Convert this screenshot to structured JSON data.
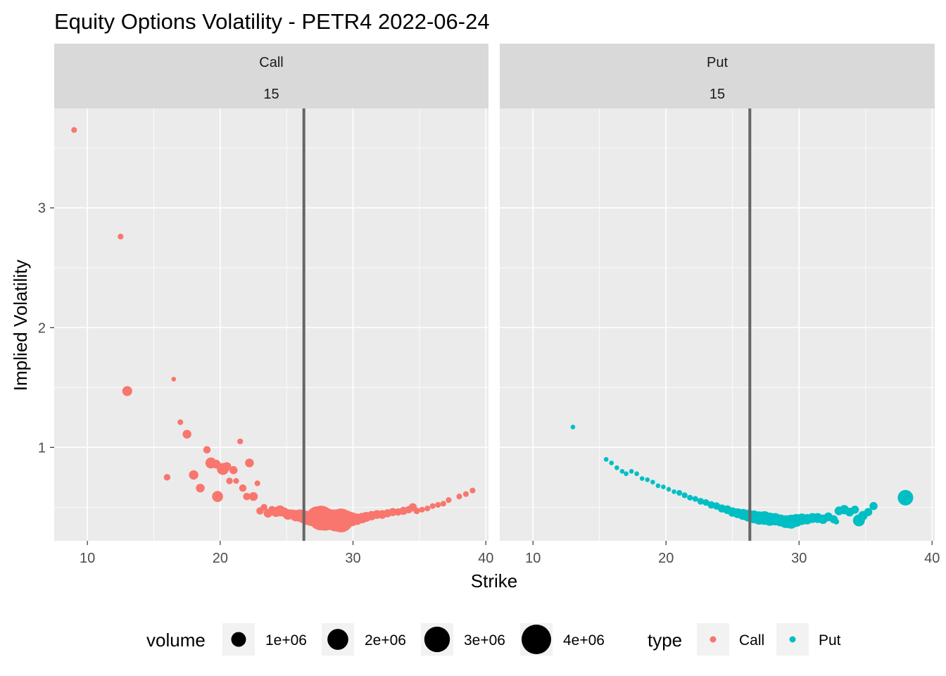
{
  "colors": {
    "call": "#F8766D",
    "put": "#00BFC4",
    "panel": "#EBEBEB",
    "strip": "#D9D9D9",
    "grid": "#FFFFFF",
    "spot_line": "#666666"
  },
  "chart_data": {
    "type": "scatter",
    "title": "Equity Options Volatility - PETR4 2022-06-24",
    "xlabel": "Strike",
    "ylabel": "Implied Volatility",
    "xlim": [
      7.5,
      40.2
    ],
    "ylim": [
      0.22,
      3.83
    ],
    "x_ticks": [
      10,
      20,
      30,
      40
    ],
    "x_tick_labels": [
      "10",
      "20",
      "30",
      "40"
    ],
    "y_ticks": [
      1,
      2,
      3
    ],
    "y_tick_labels": [
      "1",
      "2",
      "3"
    ],
    "grid": true,
    "spot_price": 26.3,
    "facets": [
      {
        "label": "Call",
        "sublabel": "15",
        "type": "Call"
      },
      {
        "label": "Put",
        "sublabel": "15",
        "type": "Put"
      }
    ],
    "series": [
      {
        "name": "Call",
        "points": [
          {
            "x": 9.0,
            "y": 3.65,
            "volume": 150000
          },
          {
            "x": 12.5,
            "y": 2.76,
            "volume": 150000
          },
          {
            "x": 13.0,
            "y": 1.47,
            "volume": 450000
          },
          {
            "x": 16.0,
            "y": 0.75,
            "volume": 200000
          },
          {
            "x": 16.5,
            "y": 1.57,
            "volume": 100000
          },
          {
            "x": 17.0,
            "y": 1.21,
            "volume": 150000
          },
          {
            "x": 17.5,
            "y": 1.11,
            "volume": 350000
          },
          {
            "x": 18.0,
            "y": 0.77,
            "volume": 400000
          },
          {
            "x": 18.5,
            "y": 0.66,
            "volume": 350000
          },
          {
            "x": 19.0,
            "y": 0.98,
            "volume": 250000
          },
          {
            "x": 19.3,
            "y": 0.87,
            "volume": 550000
          },
          {
            "x": 19.7,
            "y": 0.86,
            "volume": 350000
          },
          {
            "x": 19.8,
            "y": 0.59,
            "volume": 550000
          },
          {
            "x": 20.2,
            "y": 0.82,
            "volume": 650000
          },
          {
            "x": 20.5,
            "y": 0.84,
            "volume": 350000
          },
          {
            "x": 20.7,
            "y": 0.72,
            "volume": 200000
          },
          {
            "x": 21.0,
            "y": 0.81,
            "volume": 300000
          },
          {
            "x": 21.2,
            "y": 0.72,
            "volume": 150000
          },
          {
            "x": 21.5,
            "y": 1.05,
            "volume": 150000
          },
          {
            "x": 21.7,
            "y": 0.66,
            "volume": 250000
          },
          {
            "x": 22.0,
            "y": 0.59,
            "volume": 250000
          },
          {
            "x": 22.2,
            "y": 0.87,
            "volume": 350000
          },
          {
            "x": 22.5,
            "y": 0.59,
            "volume": 350000
          },
          {
            "x": 22.8,
            "y": 0.7,
            "volume": 150000
          },
          {
            "x": 23.0,
            "y": 0.47,
            "volume": 250000
          },
          {
            "x": 23.3,
            "y": 0.5,
            "volume": 200000
          },
          {
            "x": 23.6,
            "y": 0.45,
            "volume": 350000
          },
          {
            "x": 23.9,
            "y": 0.48,
            "volume": 250000
          },
          {
            "x": 24.2,
            "y": 0.46,
            "volume": 450000
          },
          {
            "x": 24.5,
            "y": 0.47,
            "volume": 550000
          },
          {
            "x": 24.8,
            "y": 0.46,
            "volume": 400000
          },
          {
            "x": 25.1,
            "y": 0.44,
            "volume": 500000
          },
          {
            "x": 25.4,
            "y": 0.44,
            "volume": 450000
          },
          {
            "x": 25.7,
            "y": 0.43,
            "volume": 600000
          },
          {
            "x": 26.0,
            "y": 0.43,
            "volume": 700000
          },
          {
            "x": 26.3,
            "y": 0.42,
            "volume": 800000
          },
          {
            "x": 26.6,
            "y": 0.41,
            "volume": 900000
          },
          {
            "x": 26.9,
            "y": 0.41,
            "volume": 1200000
          },
          {
            "x": 27.3,
            "y": 0.42,
            "volume": 2000000
          },
          {
            "x": 27.6,
            "y": 0.41,
            "volume": 2800000
          },
          {
            "x": 27.9,
            "y": 0.4,
            "volume": 2400000
          },
          {
            "x": 28.3,
            "y": 0.4,
            "volume": 1800000
          },
          {
            "x": 28.7,
            "y": 0.39,
            "volume": 2200000
          },
          {
            "x": 29.1,
            "y": 0.39,
            "volume": 2600000
          },
          {
            "x": 29.5,
            "y": 0.4,
            "volume": 1400000
          },
          {
            "x": 29.9,
            "y": 0.4,
            "volume": 900000
          },
          {
            "x": 30.3,
            "y": 0.4,
            "volume": 600000
          },
          {
            "x": 30.7,
            "y": 0.41,
            "volume": 500000
          },
          {
            "x": 31.0,
            "y": 0.42,
            "volume": 450000
          },
          {
            "x": 31.4,
            "y": 0.43,
            "volume": 400000
          },
          {
            "x": 31.8,
            "y": 0.44,
            "volume": 350000
          },
          {
            "x": 32.2,
            "y": 0.44,
            "volume": 350000
          },
          {
            "x": 32.6,
            "y": 0.45,
            "volume": 300000
          },
          {
            "x": 33.0,
            "y": 0.46,
            "volume": 300000
          },
          {
            "x": 33.4,
            "y": 0.46,
            "volume": 250000
          },
          {
            "x": 33.8,
            "y": 0.47,
            "volume": 300000
          },
          {
            "x": 34.2,
            "y": 0.48,
            "volume": 250000
          },
          {
            "x": 34.5,
            "y": 0.5,
            "volume": 300000
          },
          {
            "x": 34.8,
            "y": 0.47,
            "volume": 200000
          },
          {
            "x": 35.2,
            "y": 0.48,
            "volume": 150000
          },
          {
            "x": 35.6,
            "y": 0.49,
            "volume": 150000
          },
          {
            "x": 36.0,
            "y": 0.51,
            "volume": 150000
          },
          {
            "x": 36.4,
            "y": 0.52,
            "volume": 150000
          },
          {
            "x": 36.8,
            "y": 0.53,
            "volume": 150000
          },
          {
            "x": 37.2,
            "y": 0.56,
            "volume": 150000
          },
          {
            "x": 38.0,
            "y": 0.59,
            "volume": 150000
          },
          {
            "x": 38.5,
            "y": 0.61,
            "volume": 150000
          },
          {
            "x": 39.0,
            "y": 0.64,
            "volume": 150000
          }
        ]
      },
      {
        "name": "Put",
        "points": [
          {
            "x": 13.0,
            "y": 1.17,
            "volume": 100000
          },
          {
            "x": 15.5,
            "y": 0.9,
            "volume": 100000
          },
          {
            "x": 15.9,
            "y": 0.87,
            "volume": 100000
          },
          {
            "x": 16.3,
            "y": 0.83,
            "volume": 100000
          },
          {
            "x": 16.7,
            "y": 0.8,
            "volume": 100000
          },
          {
            "x": 17.0,
            "y": 0.78,
            "volume": 100000
          },
          {
            "x": 17.4,
            "y": 0.8,
            "volume": 100000
          },
          {
            "x": 17.8,
            "y": 0.78,
            "volume": 100000
          },
          {
            "x": 18.2,
            "y": 0.74,
            "volume": 100000
          },
          {
            "x": 18.6,
            "y": 0.73,
            "volume": 100000
          },
          {
            "x": 19.0,
            "y": 0.71,
            "volume": 100000
          },
          {
            "x": 19.4,
            "y": 0.68,
            "volume": 100000
          },
          {
            "x": 19.8,
            "y": 0.67,
            "volume": 100000
          },
          {
            "x": 20.2,
            "y": 0.65,
            "volume": 100000
          },
          {
            "x": 20.6,
            "y": 0.63,
            "volume": 100000
          },
          {
            "x": 21.0,
            "y": 0.62,
            "volume": 150000
          },
          {
            "x": 21.4,
            "y": 0.6,
            "volume": 150000
          },
          {
            "x": 21.8,
            "y": 0.58,
            "volume": 150000
          },
          {
            "x": 22.2,
            "y": 0.57,
            "volume": 150000
          },
          {
            "x": 22.6,
            "y": 0.55,
            "volume": 200000
          },
          {
            "x": 23.0,
            "y": 0.54,
            "volume": 200000
          },
          {
            "x": 23.4,
            "y": 0.52,
            "volume": 250000
          },
          {
            "x": 23.8,
            "y": 0.51,
            "volume": 250000
          },
          {
            "x": 24.2,
            "y": 0.49,
            "volume": 300000
          },
          {
            "x": 24.6,
            "y": 0.48,
            "volume": 350000
          },
          {
            "x": 25.0,
            "y": 0.46,
            "volume": 400000
          },
          {
            "x": 25.4,
            "y": 0.45,
            "volume": 450000
          },
          {
            "x": 25.8,
            "y": 0.44,
            "volume": 550000
          },
          {
            "x": 26.2,
            "y": 0.43,
            "volume": 650000
          },
          {
            "x": 26.6,
            "y": 0.42,
            "volume": 750000
          },
          {
            "x": 27.0,
            "y": 0.41,
            "volume": 800000
          },
          {
            "x": 27.4,
            "y": 0.41,
            "volume": 850000
          },
          {
            "x": 27.8,
            "y": 0.4,
            "volume": 800000
          },
          {
            "x": 28.2,
            "y": 0.4,
            "volume": 700000
          },
          {
            "x": 28.6,
            "y": 0.39,
            "volume": 650000
          },
          {
            "x": 29.0,
            "y": 0.38,
            "volume": 750000
          },
          {
            "x": 29.4,
            "y": 0.38,
            "volume": 900000
          },
          {
            "x": 29.8,
            "y": 0.39,
            "volume": 750000
          },
          {
            "x": 30.2,
            "y": 0.4,
            "volume": 600000
          },
          {
            "x": 30.6,
            "y": 0.4,
            "volume": 500000
          },
          {
            "x": 31.0,
            "y": 0.41,
            "volume": 450000
          },
          {
            "x": 31.4,
            "y": 0.41,
            "volume": 450000
          },
          {
            "x": 31.8,
            "y": 0.4,
            "volume": 400000
          },
          {
            "x": 32.2,
            "y": 0.42,
            "volume": 350000
          },
          {
            "x": 32.6,
            "y": 0.4,
            "volume": 300000
          },
          {
            "x": 33.0,
            "y": 0.47,
            "volume": 350000
          },
          {
            "x": 33.4,
            "y": 0.48,
            "volume": 400000
          },
          {
            "x": 33.8,
            "y": 0.46,
            "volume": 350000
          },
          {
            "x": 32.8,
            "y": 0.38,
            "volume": 150000
          },
          {
            "x": 34.2,
            "y": 0.48,
            "volume": 300000
          },
          {
            "x": 34.5,
            "y": 0.39,
            "volume": 650000
          },
          {
            "x": 34.8,
            "y": 0.43,
            "volume": 400000
          },
          {
            "x": 35.2,
            "y": 0.46,
            "volume": 300000
          },
          {
            "x": 35.6,
            "y": 0.51,
            "volume": 300000
          },
          {
            "x": 38.0,
            "y": 0.58,
            "volume": 1100000
          }
        ]
      }
    ],
    "legend": {
      "position": "bottom",
      "size_title": "volume",
      "size_entries": [
        {
          "label": "1e+06",
          "value": 1000000
        },
        {
          "label": "2e+06",
          "value": 2000000
        },
        {
          "label": "3e+06",
          "value": 3000000
        },
        {
          "label": "4e+06",
          "value": 4000000
        }
      ],
      "color_title": "type",
      "color_entries": [
        {
          "label": "Call",
          "color": "#F8766D"
        },
        {
          "label": "Put",
          "color": "#00BFC4"
        }
      ]
    }
  }
}
